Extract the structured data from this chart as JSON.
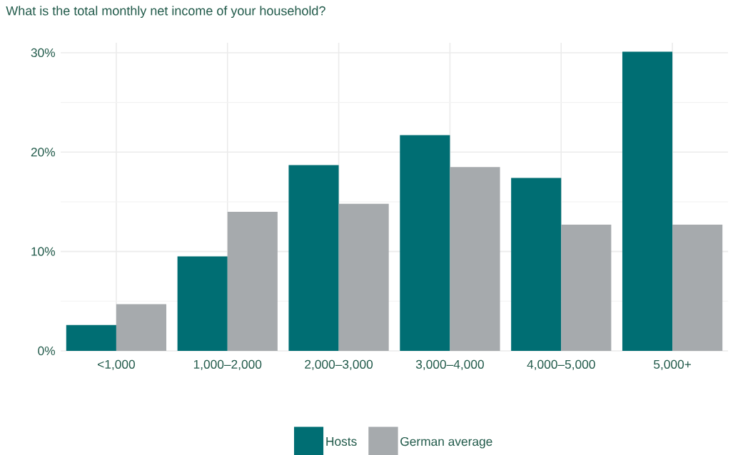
{
  "chart_data": {
    "type": "bar",
    "title": "What is the total monthly net income of your household?",
    "categories": [
      "<1,000",
      "1,000–2,000",
      "2,000–3,000",
      "3,000–4,000",
      "4,000–5,000",
      "5,000+"
    ],
    "series": [
      {
        "name": "Hosts",
        "color": "#006e73",
        "values": [
          2.6,
          9.5,
          18.7,
          21.7,
          17.4,
          30.1
        ]
      },
      {
        "name": "German average",
        "color": "#a6aaad",
        "values": [
          4.7,
          14.0,
          14.8,
          18.5,
          12.7,
          12.7
        ]
      }
    ],
    "ylim": [
      0,
      31
    ],
    "yticks": [
      {
        "value": 0,
        "label": "0%"
      },
      {
        "value": 10,
        "label": "10%"
      },
      {
        "value": 20,
        "label": "20%"
      },
      {
        "value": 30,
        "label": "30%"
      }
    ],
    "grid": true,
    "legend": "bottom"
  }
}
